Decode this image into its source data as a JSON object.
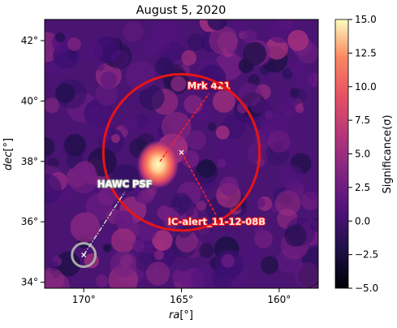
{
  "chart_data": {
    "type": "heatmap",
    "title": "August 5, 2020",
    "xlabel": "ra[°]",
    "ylabel": "dec[°]",
    "x_range_deg": [
      172,
      158
    ],
    "y_range_deg": [
      33.8,
      42.7
    ],
    "x_ticks": [
      170,
      165,
      160
    ],
    "x_tick_labels": [
      "170°",
      "165°",
      "160°"
    ],
    "y_ticks": [
      34,
      36,
      38,
      40,
      42
    ],
    "y_tick_labels": [
      "34°",
      "36°",
      "38°",
      "40°",
      "42°"
    ],
    "colorbar": {
      "label": "Significance(σ)",
      "colormap": "magma",
      "range": [
        -5.0,
        15.0
      ],
      "ticks": [
        15.0,
        12.5,
        10.0,
        7.5,
        5.0,
        2.5,
        0.0,
        -2.5,
        -5.0
      ],
      "tick_labels": [
        "15.0",
        "12.5",
        "10.0",
        "7.5",
        "5.0",
        "2.5",
        "0.0",
        "−2.5",
        "−5.0"
      ]
    },
    "hotspot": {
      "ra": 166.2,
      "dec": 37.9,
      "significance": 14.0
    },
    "sources": [
      {
        "label": "Mrk 421",
        "ra": 166.1,
        "dec": 38.0,
        "label_ra": 163.6,
        "label_dec": 40.4,
        "marker": "none",
        "color": "#ff2222",
        "line": "dashed"
      },
      {
        "label": "IC-alert_11-12-08B",
        "ra": 165.0,
        "dec": 38.3,
        "label_ra": 163.2,
        "label_dec": 35.9,
        "marker": "x",
        "color": "#ff2222",
        "line": "dashed",
        "error_circle": {
          "ra": 165.0,
          "dec": 38.3,
          "radius_deg": 4.0,
          "color": "#e51515"
        }
      },
      {
        "label": "HAWC PSF",
        "ra": 170.0,
        "dec": 34.9,
        "label_ra": 167.9,
        "label_dec": 37.15,
        "marker": "x",
        "color": "#cccccc",
        "line": "dashdot",
        "psf_circle": {
          "ra": 170.0,
          "dec": 34.9,
          "radius_deg": 0.25,
          "color": "#aaaaaa"
        }
      }
    ]
  }
}
